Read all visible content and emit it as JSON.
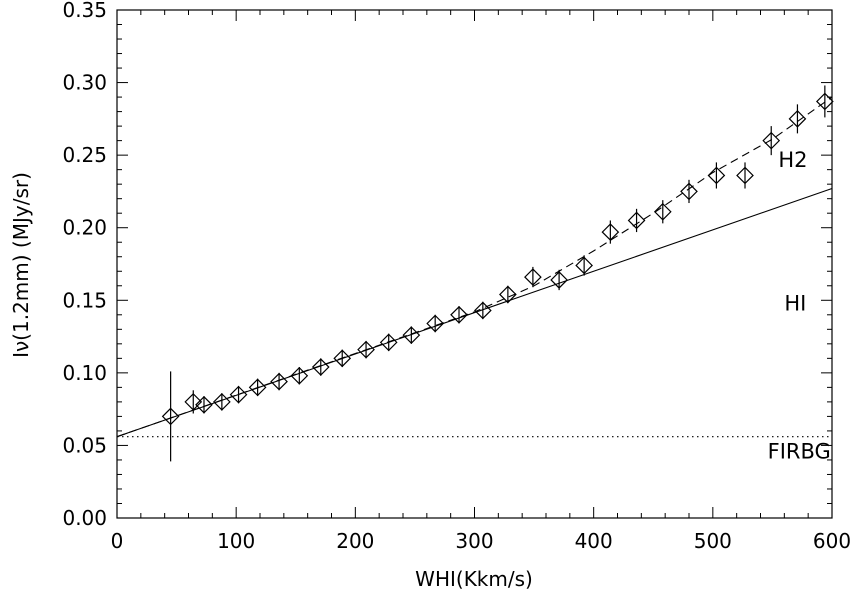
{
  "chart_data": {
    "type": "scatter",
    "title": "",
    "xlabel": "WHI(Kkm/s)",
    "ylabel": "Iν(1.2mm) (MJy/sr)",
    "xlim": [
      0,
      600
    ],
    "ylim": [
      0,
      0.35
    ],
    "xticks": [
      0,
      100,
      200,
      300,
      400,
      500,
      600
    ],
    "xtick_labels": [
      "0",
      "100",
      "200",
      "300",
      "400",
      "500",
      "600"
    ],
    "yticks": [
      0,
      0.05,
      0.1,
      0.15,
      0.2,
      0.25,
      0.3,
      0.35
    ],
    "ytick_labels": [
      "0.00",
      "0.05",
      "0.10",
      "0.15",
      "0.20",
      "0.25",
      "0.30",
      "0.35"
    ],
    "grid": false,
    "marker": "diamond",
    "points": [
      {
        "x": 45,
        "y": 0.07,
        "err": 0.031
      },
      {
        "x": 64,
        "y": 0.08,
        "err": 0.008
      },
      {
        "x": 73,
        "y": 0.078,
        "err": 0.006
      },
      {
        "x": 88,
        "y": 0.08,
        "err": 0.006
      },
      {
        "x": 102,
        "y": 0.085,
        "err": 0.006
      },
      {
        "x": 118,
        "y": 0.09,
        "err": 0.006
      },
      {
        "x": 136,
        "y": 0.094,
        "err": 0.006
      },
      {
        "x": 153,
        "y": 0.098,
        "err": 0.006
      },
      {
        "x": 171,
        "y": 0.104,
        "err": 0.006
      },
      {
        "x": 189,
        "y": 0.11,
        "err": 0.006
      },
      {
        "x": 209,
        "y": 0.116,
        "err": 0.006
      },
      {
        "x": 228,
        "y": 0.121,
        "err": 0.006
      },
      {
        "x": 247,
        "y": 0.126,
        "err": 0.006
      },
      {
        "x": 267,
        "y": 0.134,
        "err": 0.006
      },
      {
        "x": 287,
        "y": 0.14,
        "err": 0.006
      },
      {
        "x": 307,
        "y": 0.143,
        "err": 0.006
      },
      {
        "x": 328,
        "y": 0.154,
        "err": 0.006
      },
      {
        "x": 349,
        "y": 0.166,
        "err": 0.007
      },
      {
        "x": 371,
        "y": 0.164,
        "err": 0.007
      },
      {
        "x": 392,
        "y": 0.174,
        "err": 0.007
      },
      {
        "x": 414,
        "y": 0.197,
        "err": 0.008
      },
      {
        "x": 436,
        "y": 0.205,
        "err": 0.008
      },
      {
        "x": 458,
        "y": 0.211,
        "err": 0.008
      },
      {
        "x": 480,
        "y": 0.225,
        "err": 0.008
      },
      {
        "x": 503,
        "y": 0.236,
        "err": 0.009
      },
      {
        "x": 527,
        "y": 0.236,
        "err": 0.009
      },
      {
        "x": 549,
        "y": 0.26,
        "err": 0.01
      },
      {
        "x": 571,
        "y": 0.275,
        "err": 0.01
      },
      {
        "x": 594,
        "y": 0.287,
        "err": 0.011
      }
    ],
    "lines": [
      {
        "style": "solid",
        "x": [
          0,
          600
        ],
        "y": [
          0.056,
          0.227
        ]
      },
      {
        "style": "dashed",
        "x": [
          0,
          300,
          350,
          400,
          450,
          500,
          550,
          600
        ],
        "y": [
          0.056,
          0.142,
          0.16,
          0.184,
          0.21,
          0.238,
          0.261,
          0.29
        ]
      },
      {
        "style": "dotted",
        "x": [
          0,
          600
        ],
        "y": [
          0.056,
          0.056
        ]
      }
    ],
    "annotations": [
      {
        "text": "H2",
        "x": 555,
        "y": 0.242
      },
      {
        "text": "HI",
        "x": 560,
        "y": 0.143
      },
      {
        "text": "FIRBG",
        "x": 546,
        "y": 0.041
      }
    ]
  }
}
